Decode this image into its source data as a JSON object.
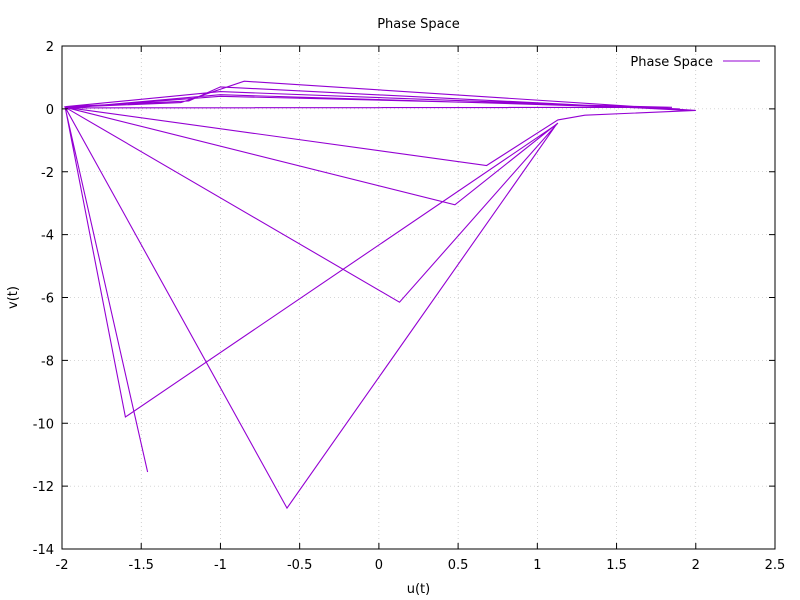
{
  "chart_data": {
    "type": "line",
    "title": "Phase Space",
    "xlabel": "u(t)",
    "ylabel": "v(t)",
    "xlim": [
      -2,
      2.5
    ],
    "ylim": [
      -14,
      2
    ],
    "xticks": [
      -2,
      -1.5,
      -1,
      -0.5,
      0,
      0.5,
      1,
      1.5,
      2,
      2.5
    ],
    "xtick_labels": [
      "-2",
      "-1.5",
      "-1",
      "-0.5",
      "0",
      "0.5",
      "1",
      "1.5",
      "2",
      "2.5"
    ],
    "yticks": [
      -14,
      -12,
      -10,
      -8,
      -6,
      -4,
      -2,
      0,
      2
    ],
    "ytick_labels": [
      "-14",
      "-12",
      "-10",
      "-8",
      "-6",
      "-4",
      "-2",
      "0",
      "2"
    ],
    "grid": true,
    "legend_position": "top-right",
    "series": [
      {
        "name": "Phase Space",
        "color": "#9400d3",
        "points": [
          [
            2.0,
            -0.05
          ],
          [
            1.3,
            -0.2
          ],
          [
            1.13,
            -0.35
          ],
          [
            0.68,
            -1.8
          ],
          [
            -1.98,
            0.05
          ],
          [
            -1.6,
            -9.8
          ],
          [
            1.12,
            -0.5
          ],
          [
            -0.58,
            -12.7
          ],
          [
            -1.98,
            0.05
          ],
          [
            0.13,
            -6.15
          ],
          [
            1.13,
            -0.45
          ],
          [
            0.48,
            -3.05
          ],
          [
            -1.98,
            0.05
          ],
          [
            -1.25,
            0.2
          ],
          [
            -0.85,
            0.88
          ],
          [
            2.0,
            -0.05
          ],
          [
            1.95,
            -0.05
          ],
          [
            -1.0,
            0.7
          ],
          [
            -1.2,
            0.25
          ],
          [
            -1.98,
            0.07
          ],
          [
            -1.0,
            0.55
          ],
          [
            1.9,
            0.0
          ],
          [
            -1.0,
            0.45
          ],
          [
            -1.9,
            0.05
          ],
          [
            -1.0,
            0.4
          ],
          [
            1.85,
            0.05
          ],
          [
            -1.98,
            0.03
          ],
          [
            -1.46,
            -11.55
          ]
        ]
      }
    ]
  }
}
